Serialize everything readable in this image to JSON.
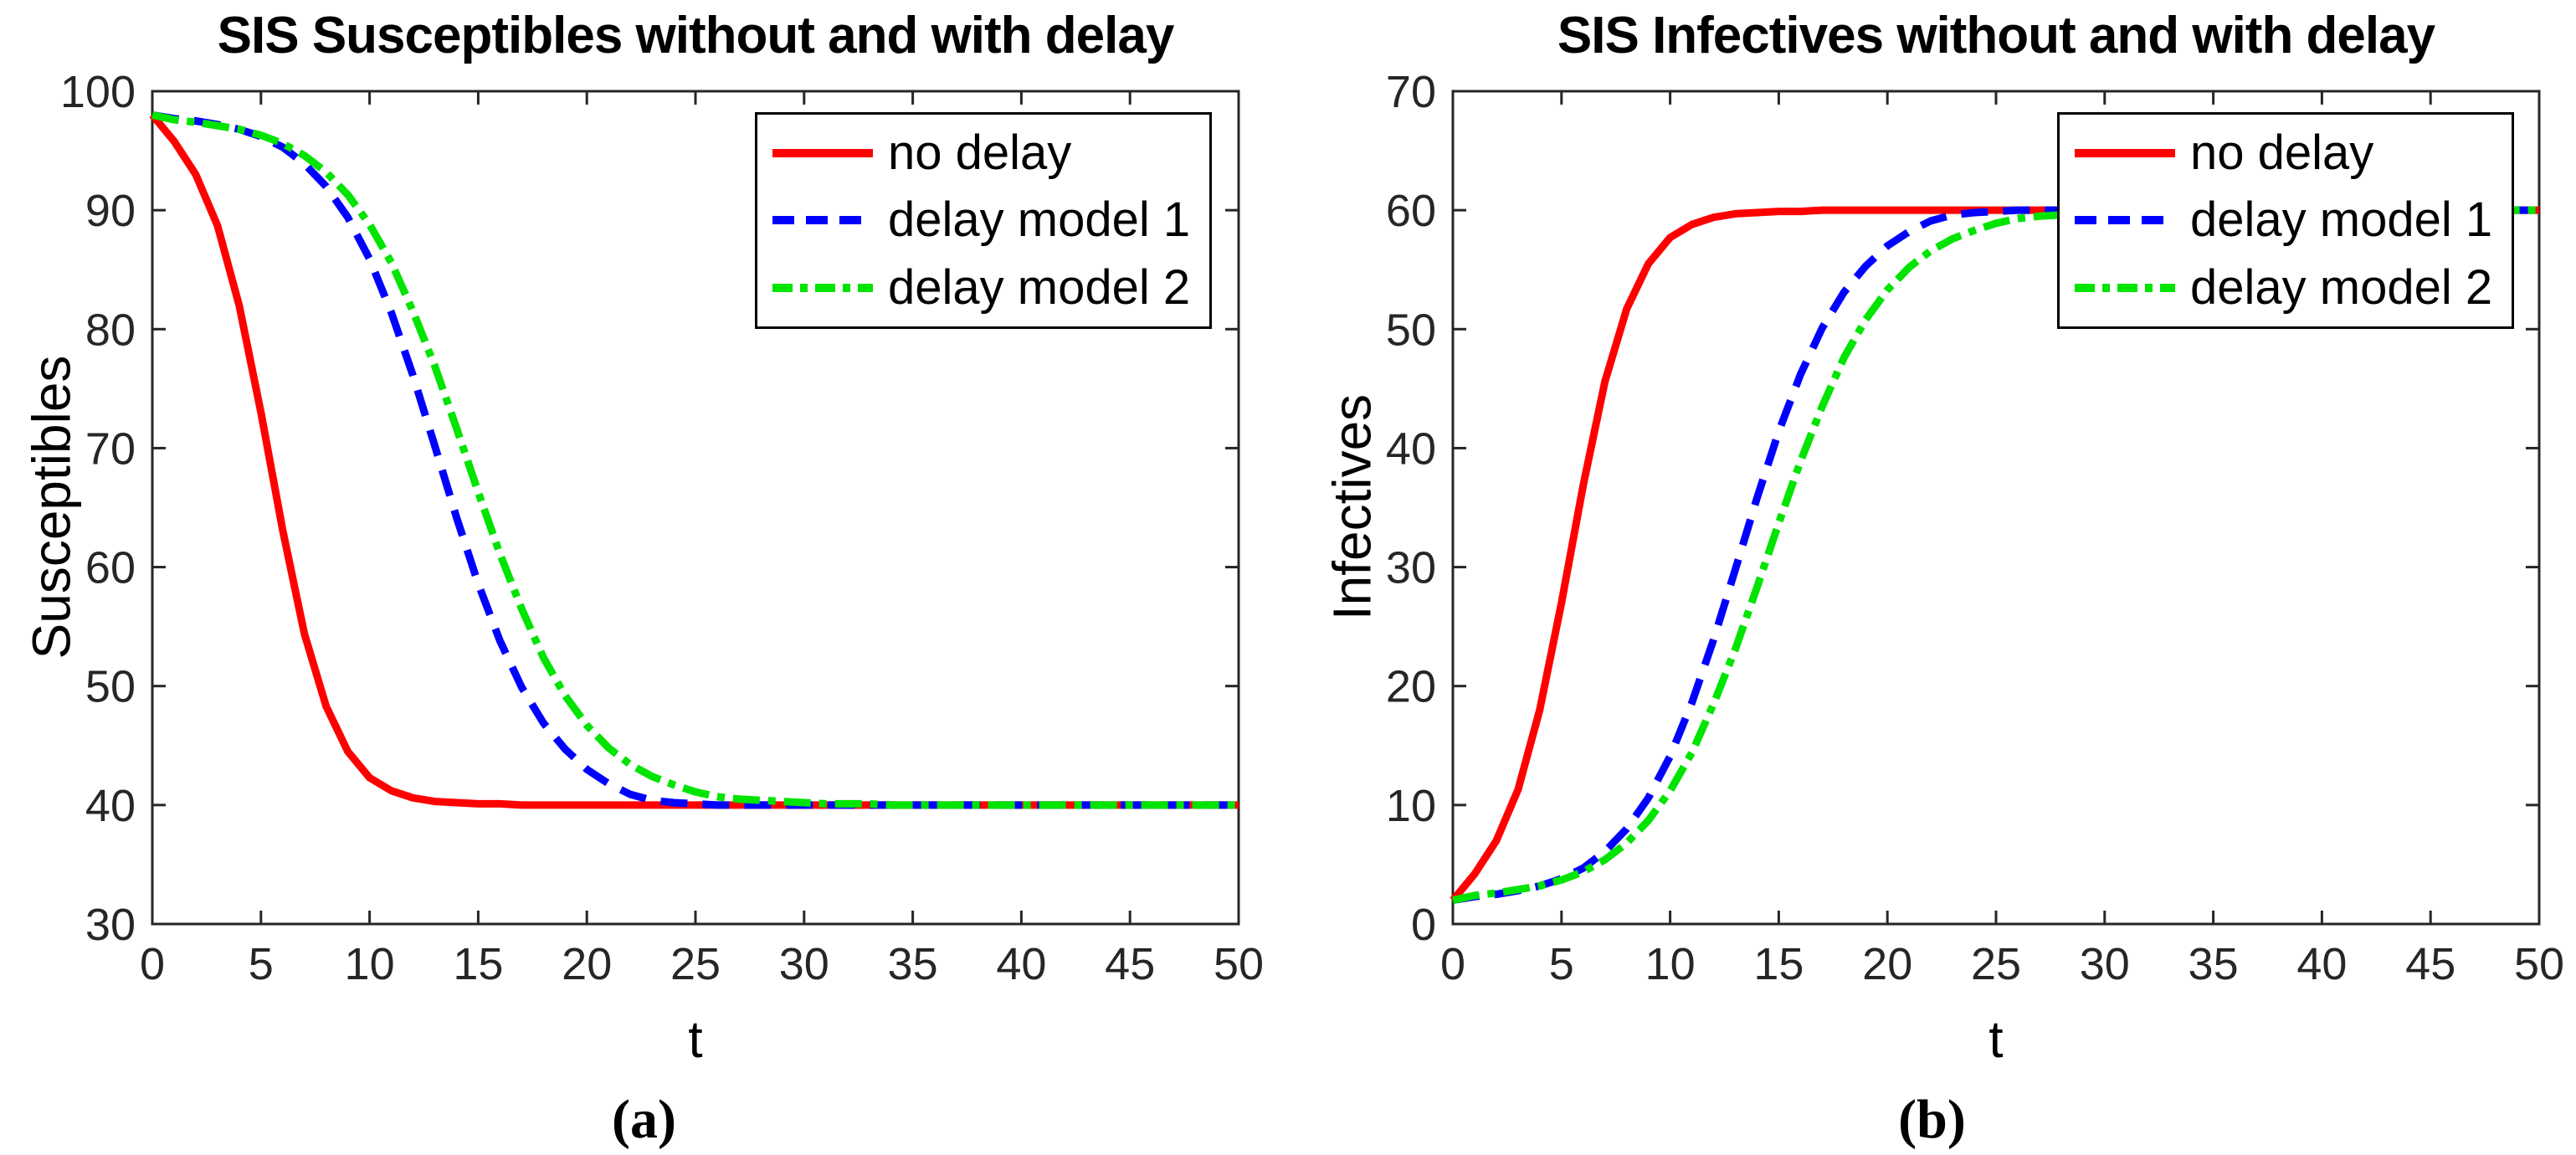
{
  "figure": {
    "background": "#ffffff",
    "axis_color": "#262626",
    "text_color": "#000000"
  },
  "captions": {
    "a": "(a)",
    "b": "(b)"
  },
  "chart_data": [
    {
      "type": "line",
      "panel": "a",
      "title": "SIS Susceptibles without and with delay",
      "xlabel": "t",
      "ylabel": "Susceptibles",
      "xlim": [
        0,
        50
      ],
      "ylim": [
        30,
        100
      ],
      "xticks": [
        0,
        5,
        10,
        15,
        20,
        25,
        30,
        35,
        40,
        45,
        50
      ],
      "yticks": [
        30,
        40,
        50,
        60,
        70,
        80,
        90,
        100
      ],
      "grid": false,
      "legend": {
        "position": "top-right",
        "items": [
          "no delay",
          "delay model 1",
          "delay model 2"
        ]
      },
      "x": [
        0,
        1,
        2,
        3,
        4,
        5,
        6,
        7,
        8,
        9,
        10,
        11,
        12,
        13,
        14,
        15,
        16,
        17,
        18,
        19,
        20,
        21,
        22,
        23,
        24,
        25,
        26,
        27,
        28,
        29,
        30,
        31,
        32,
        33,
        34,
        35,
        36,
        37,
        38,
        39,
        40,
        41,
        42,
        43,
        44,
        45,
        46,
        47,
        48,
        49,
        50
      ],
      "series": [
        {
          "name": "no delay",
          "color": "#ff0000",
          "style": "solid",
          "values": [
            98,
            95.8,
            93,
            88.7,
            82,
            73,
            63.1,
            54.4,
            48.3,
            44.5,
            42.3,
            41.2,
            40.6,
            40.3,
            40.2,
            40.1,
            40.1,
            40,
            40,
            40,
            40,
            40,
            40,
            40,
            40,
            40,
            40,
            40,
            40,
            40,
            40,
            40,
            40,
            40,
            40,
            40,
            40,
            40,
            40,
            40,
            40,
            40,
            40,
            40,
            40,
            40,
            40,
            40,
            40,
            40,
            40
          ]
        },
        {
          "name": "delay model 1",
          "color": "#0000ff",
          "style": "dashed",
          "values": [
            98,
            97.7,
            97.5,
            97.2,
            96.8,
            96.2,
            95.3,
            93.9,
            92,
            89.4,
            85.9,
            81.4,
            76.1,
            70.2,
            64.2,
            58.6,
            53.8,
            49.9,
            46.9,
            44.7,
            43,
            41.8,
            40.9,
            40.4,
            40.2,
            40.1,
            40,
            40,
            40,
            40,
            40,
            40,
            40,
            40,
            40,
            40,
            40,
            40,
            40,
            40,
            40,
            40,
            40,
            40,
            40,
            40,
            40,
            40,
            40,
            40,
            40
          ]
        },
        {
          "name": "delay model 2",
          "color": "#00e400",
          "style": "dashdot",
          "values": [
            98,
            97.6,
            97.4,
            97.1,
            96.8,
            96.3,
            95.6,
            94.6,
            93.2,
            91.3,
            88.8,
            85.6,
            81.5,
            76.9,
            71.7,
            66.3,
            61.1,
            56.5,
            52.4,
            49.2,
            46.7,
            44.8,
            43.4,
            42.4,
            41.7,
            41.1,
            40.7,
            40.5,
            40.4,
            40.3,
            40.2,
            40.1,
            40.1,
            40.1,
            40,
            40,
            40,
            40,
            40,
            40,
            40,
            40,
            40,
            40,
            40,
            40,
            40,
            40,
            40,
            40,
            40
          ]
        }
      ]
    },
    {
      "type": "line",
      "panel": "b",
      "title": "SIS Infectives without and with delay",
      "xlabel": "t",
      "ylabel": "Infectives",
      "xlim": [
        0,
        50
      ],
      "ylim": [
        0,
        70
      ],
      "xticks": [
        0,
        5,
        10,
        15,
        20,
        25,
        30,
        35,
        40,
        45,
        50
      ],
      "yticks": [
        0,
        10,
        20,
        30,
        40,
        50,
        60,
        70
      ],
      "grid": false,
      "legend": {
        "position": "top-right",
        "items": [
          "no delay",
          "delay model 1",
          "delay model 2"
        ]
      },
      "x": [
        0,
        1,
        2,
        3,
        4,
        5,
        6,
        7,
        8,
        9,
        10,
        11,
        12,
        13,
        14,
        15,
        16,
        17,
        18,
        19,
        20,
        21,
        22,
        23,
        24,
        25,
        26,
        27,
        28,
        29,
        30,
        31,
        32,
        33,
        34,
        35,
        36,
        37,
        38,
        39,
        40,
        41,
        42,
        43,
        44,
        45,
        46,
        47,
        48,
        49,
        50
      ],
      "series": [
        {
          "name": "no delay",
          "color": "#ff0000",
          "style": "solid",
          "values": [
            2,
            4.2,
            7,
            11.3,
            18,
            27,
            36.9,
            45.6,
            51.7,
            55.5,
            57.7,
            58.8,
            59.4,
            59.7,
            59.8,
            59.9,
            59.9,
            60,
            60,
            60,
            60,
            60,
            60,
            60,
            60,
            60,
            60,
            60,
            60,
            60,
            60,
            60,
            60,
            60,
            60,
            60,
            60,
            60,
            60,
            60,
            60,
            60,
            60,
            60,
            60,
            60,
            60,
            60,
            60,
            60,
            60
          ]
        },
        {
          "name": "delay model 1",
          "color": "#0000ff",
          "style": "dashed",
          "values": [
            2,
            2.3,
            2.5,
            2.8,
            3.2,
            3.8,
            4.7,
            6.1,
            8,
            10.6,
            14.1,
            18.6,
            23.9,
            29.8,
            35.8,
            41.4,
            46.2,
            50.1,
            53.1,
            55.3,
            57,
            58.2,
            59.1,
            59.6,
            59.8,
            59.9,
            60,
            60,
            60,
            60,
            60,
            60,
            60,
            60,
            60,
            60,
            60,
            60,
            60,
            60,
            60,
            60,
            60,
            60,
            60,
            60,
            60,
            60,
            60,
            60,
            60
          ]
        },
        {
          "name": "delay model 2",
          "color": "#00e400",
          "style": "dashdot",
          "values": [
            2,
            2.4,
            2.6,
            2.9,
            3.2,
            3.7,
            4.4,
            5.4,
            6.8,
            8.7,
            11.2,
            14.4,
            18.5,
            23.1,
            28.3,
            33.7,
            38.9,
            43.5,
            47.6,
            50.8,
            53.3,
            55.2,
            56.6,
            57.6,
            58.3,
            58.9,
            59.3,
            59.5,
            59.6,
            59.7,
            59.8,
            59.9,
            59.9,
            59.9,
            60,
            60,
            60,
            60,
            60,
            60,
            60,
            60,
            60,
            60,
            60,
            60,
            60,
            60,
            60,
            60,
            60
          ]
        }
      ]
    }
  ]
}
